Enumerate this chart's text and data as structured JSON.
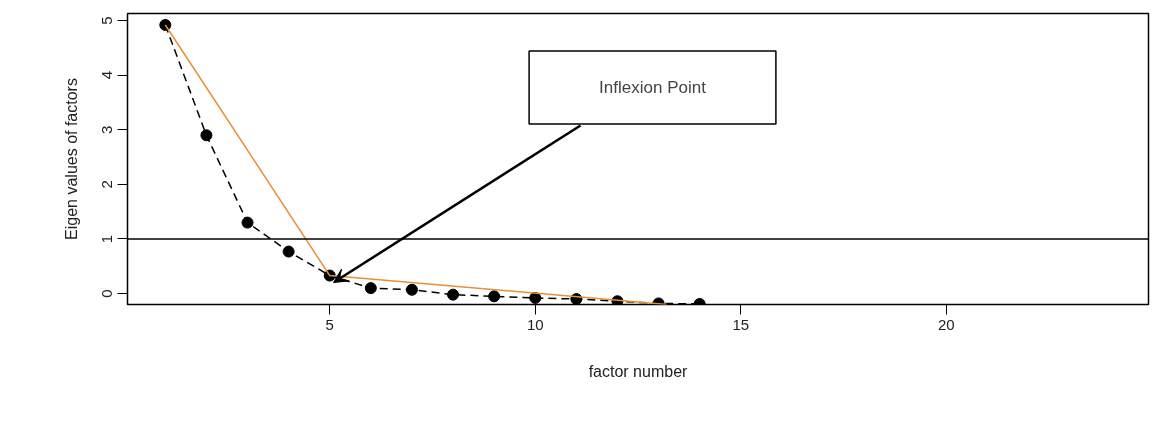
{
  "chart_data": {
    "type": "line",
    "xlabel": "factor number",
    "ylabel": "Eigen values of factors",
    "x": [
      1,
      2,
      3,
      4,
      5,
      6,
      7,
      8,
      9,
      10,
      11,
      12,
      13,
      14
    ],
    "series": [
      {
        "color": "#000000",
        "marker": "circle",
        "line_style": "dashed",
        "values": [
          4.92,
          2.9,
          1.3,
          0.77,
          0.33,
          0.1,
          0.07,
          -0.02,
          -0.05,
          -0.08,
          -0.1,
          -0.14,
          -0.18,
          -0.19
        ]
      },
      {
        "type": "line",
        "color": "#e69138",
        "marker": "none",
        "line_style": "solid",
        "x": [
          1,
          5,
          13.2
        ],
        "values": [
          4.92,
          0.33,
          -0.2
        ]
      }
    ],
    "ref_lines": [
      {
        "axis": "y",
        "value": 1,
        "color": "#000000"
      }
    ],
    "annotations": [
      "Inflexion Point"
    ],
    "xlim": [
      0.08,
      24.92
    ],
    "ylim": [
      -0.2,
      5.13
    ],
    "xticks": [
      5,
      10,
      15,
      20
    ],
    "yticks": [
      0,
      1,
      2,
      3,
      4,
      5
    ],
    "grid": false
  }
}
